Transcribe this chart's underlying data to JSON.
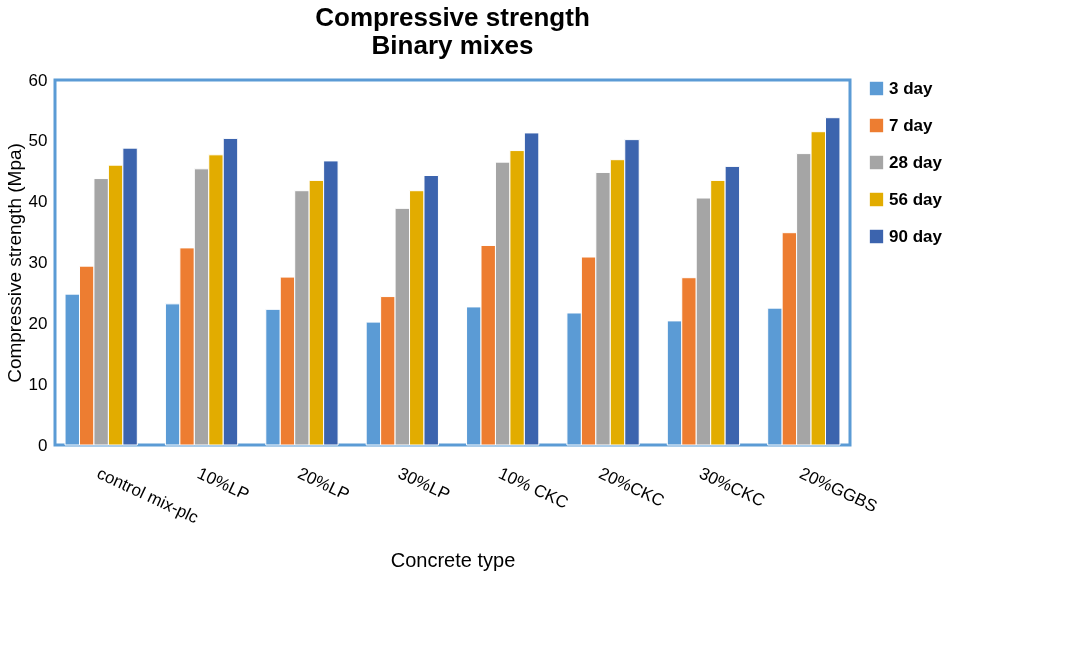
{
  "chart_data": {
    "type": "bar",
    "title": "Compressive strength\nBinary mixes",
    "xlabel": "Concrete type",
    "ylabel": "Compressive strength (Mpa)",
    "categories": [
      "control mix-plc",
      "10%LP",
      "20%LP",
      "30%LP",
      "10% CKC",
      "20%CKC",
      "30%CKC",
      "20%GGBS"
    ],
    "series": [
      {
        "name": "3 day",
        "color": "#5b9bd5",
        "values": [
          24.8,
          23.2,
          22.3,
          20.2,
          22.7,
          21.7,
          20.4,
          22.5
        ]
      },
      {
        "name": "7 day",
        "color": "#ed7d31",
        "values": [
          29.4,
          32.4,
          27.6,
          24.4,
          32.8,
          30.9,
          27.5,
          34.9
        ]
      },
      {
        "name": "28 day",
        "color": "#a5a5a5",
        "values": [
          43.8,
          45.4,
          41.8,
          38.9,
          46.5,
          44.8,
          40.6,
          47.9
        ]
      },
      {
        "name": "56 day",
        "color": "#e2ac00",
        "values": [
          46.0,
          47.7,
          43.5,
          41.8,
          48.4,
          46.9,
          43.5,
          51.5
        ]
      },
      {
        "name": "90 day",
        "color": "#3c64ae",
        "values": [
          48.8,
          50.4,
          46.7,
          44.3,
          51.3,
          50.2,
          45.8,
          53.8
        ]
      }
    ],
    "ylim": [
      0,
      60
    ],
    "yticks": [
      0,
      10,
      20,
      30,
      40,
      50,
      60
    ],
    "grid": false,
    "legend": "right"
  }
}
